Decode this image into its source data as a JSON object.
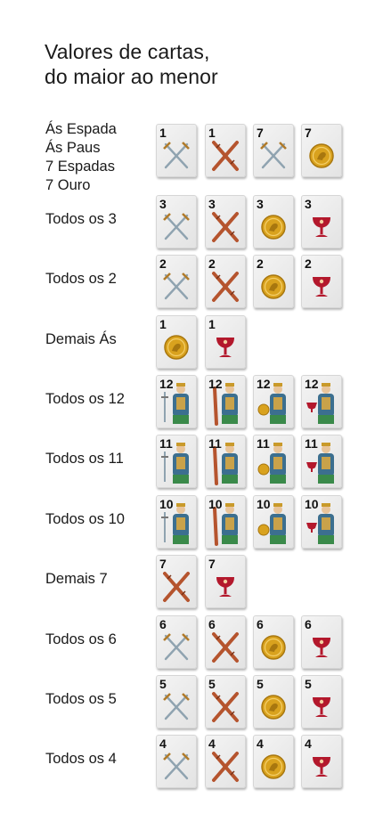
{
  "title": {
    "line1": "Valores de cartas,",
    "line2": "do maior ao menor"
  },
  "rows": [
    {
      "label": [
        "Ás Espada",
        "Ás Paus",
        "7 Espadas",
        "7 Ouro"
      ],
      "cards": [
        {
          "rank": "1",
          "suit": "espadas"
        },
        {
          "rank": "1",
          "suit": "paus"
        },
        {
          "rank": "7",
          "suit": "espadas"
        },
        {
          "rank": "7",
          "suit": "ouro"
        }
      ]
    },
    {
      "label": [
        "Todos os 3"
      ],
      "cards": [
        {
          "rank": "3",
          "suit": "espadas"
        },
        {
          "rank": "3",
          "suit": "paus"
        },
        {
          "rank": "3",
          "suit": "ouro"
        },
        {
          "rank": "3",
          "suit": "copas"
        }
      ]
    },
    {
      "label": [
        "Todos os 2"
      ],
      "cards": [
        {
          "rank": "2",
          "suit": "espadas"
        },
        {
          "rank": "2",
          "suit": "paus"
        },
        {
          "rank": "2",
          "suit": "ouro"
        },
        {
          "rank": "2",
          "suit": "copas"
        }
      ]
    },
    {
      "label": [
        "Demais Ás"
      ],
      "cards": [
        {
          "rank": "1",
          "suit": "ouro"
        },
        {
          "rank": "1",
          "suit": "copas"
        }
      ]
    },
    {
      "label": [
        "Todos os 12"
      ],
      "cards": [
        {
          "rank": "12",
          "suit": "espadas",
          "figure": "rei"
        },
        {
          "rank": "12",
          "suit": "paus",
          "figure": "rei"
        },
        {
          "rank": "12",
          "suit": "ouro",
          "figure": "rei"
        },
        {
          "rank": "12",
          "suit": "copas",
          "figure": "rei"
        }
      ]
    },
    {
      "label": [
        "Todos os 11"
      ],
      "cards": [
        {
          "rank": "11",
          "suit": "espadas",
          "figure": "cavalo"
        },
        {
          "rank": "11",
          "suit": "paus",
          "figure": "cavalo"
        },
        {
          "rank": "11",
          "suit": "ouro",
          "figure": "cavalo"
        },
        {
          "rank": "11",
          "suit": "copas",
          "figure": "cavalo"
        }
      ]
    },
    {
      "label": [
        "Todos os 10"
      ],
      "cards": [
        {
          "rank": "10",
          "suit": "espadas",
          "figure": "valete"
        },
        {
          "rank": "10",
          "suit": "paus",
          "figure": "valete"
        },
        {
          "rank": "10",
          "suit": "ouro",
          "figure": "valete"
        },
        {
          "rank": "10",
          "suit": "copas",
          "figure": "valete"
        }
      ]
    },
    {
      "label": [
        "Demais 7"
      ],
      "cards": [
        {
          "rank": "7",
          "suit": "paus"
        },
        {
          "rank": "7",
          "suit": "copas"
        }
      ]
    },
    {
      "label": [
        "Todos os 6"
      ],
      "cards": [
        {
          "rank": "6",
          "suit": "espadas"
        },
        {
          "rank": "6",
          "suit": "paus"
        },
        {
          "rank": "6",
          "suit": "ouro"
        },
        {
          "rank": "6",
          "suit": "copas"
        }
      ]
    },
    {
      "label": [
        "Todos os 5"
      ],
      "cards": [
        {
          "rank": "5",
          "suit": "espadas"
        },
        {
          "rank": "5",
          "suit": "paus"
        },
        {
          "rank": "5",
          "suit": "ouro"
        },
        {
          "rank": "5",
          "suit": "copas"
        }
      ]
    },
    {
      "label": [
        "Todos os 4"
      ],
      "cards": [
        {
          "rank": "4",
          "suit": "espadas"
        },
        {
          "rank": "4",
          "suit": "paus"
        },
        {
          "rank": "4",
          "suit": "ouro"
        },
        {
          "rank": "4",
          "suit": "copas"
        }
      ]
    }
  ],
  "colors": {
    "espadas": "#8fa3b0",
    "paus": "#b5542e",
    "ouro": "#d9a21e",
    "copas": "#b3182c",
    "text": "#1a1a1a"
  }
}
